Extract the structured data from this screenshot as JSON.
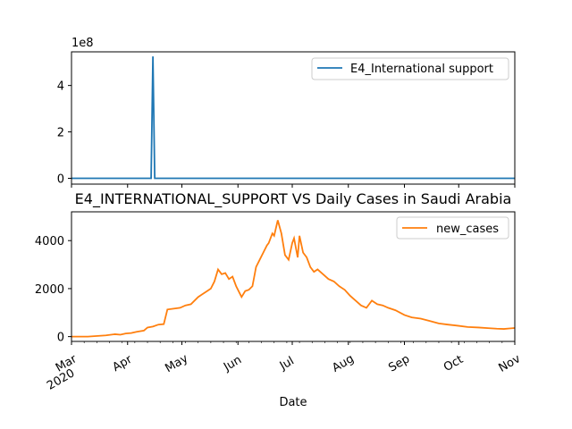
{
  "chart_data": [
    {
      "type": "line",
      "title": "",
      "xlabel": "",
      "ylabel": "",
      "offset_label": "1e8",
      "ylim": [
        -0.25,
        5.45
      ],
      "yticks": [
        0,
        2,
        4
      ],
      "grid": false,
      "legend_position": "upper right",
      "series": [
        {
          "name": "E4_International support",
          "color": "#1f77b4",
          "x": [
            "2020-03-01",
            "2020-04-14",
            "2020-04-15",
            "2020-04-16",
            "2020-11-01"
          ],
          "y": [
            0,
            0,
            5.25,
            0,
            0
          ]
        }
      ]
    },
    {
      "type": "line",
      "title": "E4_INTERNATIONAL_SUPPORT VS Daily Cases in Saudi Arabia",
      "xlabel": "Date",
      "ylabel": "",
      "ylim": [
        -200,
        5200
      ],
      "yticks": [
        0,
        2000,
        4000
      ],
      "xlim": [
        "2020-03-01",
        "2020-11-01"
      ],
      "xticks": [
        {
          "date": "2020-03-01",
          "label": "Mar",
          "sublabel": "2020"
        },
        {
          "date": "2020-04-01",
          "label": "Apr",
          "sublabel": ""
        },
        {
          "date": "2020-05-01",
          "label": "May",
          "sublabel": ""
        },
        {
          "date": "2020-06-01",
          "label": "Jun",
          "sublabel": ""
        },
        {
          "date": "2020-07-01",
          "label": "Jul",
          "sublabel": ""
        },
        {
          "date": "2020-08-01",
          "label": "Aug",
          "sublabel": ""
        },
        {
          "date": "2020-09-01",
          "label": "Sep",
          "sublabel": ""
        },
        {
          "date": "2020-10-01",
          "label": "Oct",
          "sublabel": ""
        },
        {
          "date": "2020-11-01",
          "label": "Nov",
          "sublabel": ""
        }
      ],
      "grid": false,
      "legend_position": "upper right",
      "series": [
        {
          "name": "new_cases",
          "color": "#ff7f0e",
          "x": [
            "2020-03-01",
            "2020-03-10",
            "2020-03-20",
            "2020-03-25",
            "2020-03-28",
            "2020-03-31",
            "2020-04-03",
            "2020-04-06",
            "2020-04-10",
            "2020-04-12",
            "2020-04-15",
            "2020-04-18",
            "2020-04-21",
            "2020-04-23",
            "2020-04-25",
            "2020-04-30",
            "2020-05-03",
            "2020-05-06",
            "2020-05-10",
            "2020-05-12",
            "2020-05-15",
            "2020-05-17",
            "2020-05-19",
            "2020-05-21",
            "2020-05-23",
            "2020-05-25",
            "2020-05-27",
            "2020-05-29",
            "2020-05-31",
            "2020-06-02",
            "2020-06-03",
            "2020-06-05",
            "2020-06-07",
            "2020-06-09",
            "2020-06-11",
            "2020-06-13",
            "2020-06-15",
            "2020-06-17",
            "2020-06-18",
            "2020-06-20",
            "2020-06-21",
            "2020-06-23",
            "2020-06-25",
            "2020-06-27",
            "2020-06-29",
            "2020-07-01",
            "2020-07-02",
            "2020-07-04",
            "2020-07-05",
            "2020-07-07",
            "2020-07-09",
            "2020-07-11",
            "2020-07-13",
            "2020-07-15",
            "2020-07-18",
            "2020-07-21",
            "2020-07-24",
            "2020-07-27",
            "2020-07-30",
            "2020-08-02",
            "2020-08-05",
            "2020-08-08",
            "2020-08-11",
            "2020-08-14",
            "2020-08-17",
            "2020-08-20",
            "2020-08-23",
            "2020-08-27",
            "2020-09-01",
            "2020-09-05",
            "2020-09-10",
            "2020-09-15",
            "2020-09-20",
            "2020-09-25",
            "2020-10-01",
            "2020-10-06",
            "2020-10-12",
            "2020-10-18",
            "2020-10-22",
            "2020-10-26",
            "2020-10-29",
            "2020-11-01"
          ],
          "y": [
            0,
            0,
            50,
            100,
            80,
            130,
            150,
            200,
            250,
            380,
            420,
            500,
            520,
            1130,
            1150,
            1200,
            1300,
            1350,
            1650,
            1750,
            1900,
            2000,
            2300,
            2800,
            2600,
            2650,
            2400,
            2500,
            2100,
            1800,
            1650,
            1900,
            1950,
            2100,
            2900,
            3200,
            3500,
            3800,
            3900,
            4300,
            4200,
            4850,
            4300,
            3400,
            3200,
            3900,
            4100,
            3300,
            4200,
            3500,
            3300,
            2900,
            2700,
            2800,
            2600,
            2400,
            2300,
            2100,
            1950,
            1700,
            1500,
            1300,
            1200,
            1500,
            1350,
            1300,
            1200,
            1100,
            900,
            800,
            750,
            650,
            550,
            500,
            450,
            400,
            380,
            350,
            330,
            320,
            340,
            360
          ]
        }
      ]
    }
  ]
}
